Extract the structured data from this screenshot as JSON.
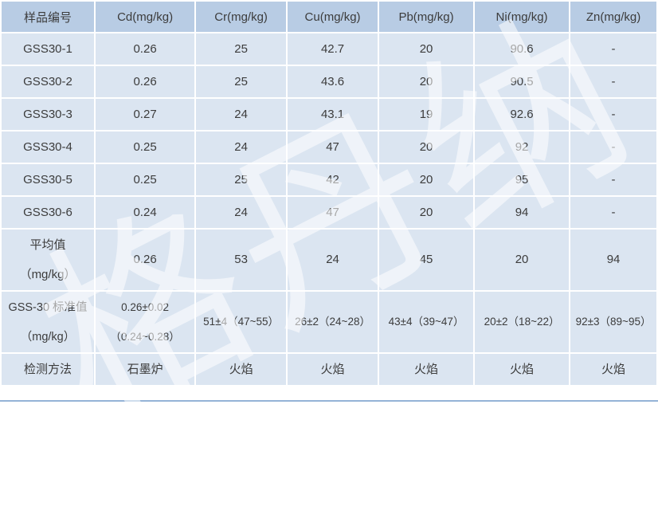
{
  "watermark": {
    "text": "格丹纳",
    "color": "#ffffff"
  },
  "colors": {
    "header_bg": "#b8cce4",
    "row_bg": "#dbe5f1",
    "gridline": "#ffffff",
    "bottom_rule": "#95b3d7",
    "text": "#3c3c3c"
  },
  "table": {
    "columns": [
      "样品编号",
      "Cd(mg/kg)",
      "Cr(mg/kg)",
      "Cu(mg/kg)",
      "Pb(mg/kg)",
      "Ni(mg/kg)",
      "Zn(mg/kg)"
    ],
    "rows": [
      {
        "cells": [
          [
            "GSS30-1"
          ],
          [
            "0.26"
          ],
          [
            "25"
          ],
          [
            "42.7"
          ],
          [
            "20"
          ],
          [
            "90.6"
          ],
          [
            "-"
          ]
        ]
      },
      {
        "cells": [
          [
            "GSS30-2"
          ],
          [
            "0.26"
          ],
          [
            "25"
          ],
          [
            "43.6"
          ],
          [
            "20"
          ],
          [
            "90.5"
          ],
          [
            "-"
          ]
        ]
      },
      {
        "cells": [
          [
            "GSS30-3"
          ],
          [
            "0.27"
          ],
          [
            "24"
          ],
          [
            "43.1"
          ],
          [
            "19"
          ],
          [
            "92.6"
          ],
          [
            "-"
          ]
        ]
      },
      {
        "cells": [
          [
            "GSS30-4"
          ],
          [
            "0.25"
          ],
          [
            "24"
          ],
          [
            "47"
          ],
          [
            "20"
          ],
          [
            "92"
          ],
          [
            "-"
          ]
        ]
      },
      {
        "cells": [
          [
            "GSS30-5"
          ],
          [
            "0.25"
          ],
          [
            "25"
          ],
          [
            "42"
          ],
          [
            "20"
          ],
          [
            "95"
          ],
          [
            "-"
          ]
        ]
      },
      {
        "cells": [
          [
            "GSS30-6"
          ],
          [
            "0.24"
          ],
          [
            "24"
          ],
          [
            "47"
          ],
          [
            "20"
          ],
          [
            "94"
          ],
          [
            "-"
          ]
        ]
      },
      {
        "cells": [
          [
            "平均值",
            "（mg/kg）"
          ],
          [
            "0.26"
          ],
          [
            "53"
          ],
          [
            "24"
          ],
          [
            "45"
          ],
          [
            "20"
          ],
          [
            "94"
          ]
        ]
      },
      {
        "cells": [
          [
            "GSS-30 标准值",
            "（mg/kg）"
          ],
          [
            "0.26±0.02",
            "（0.24~0.28）"
          ],
          [
            "51±4（47~55）"
          ],
          [
            "26±2（24~28）"
          ],
          [
            "43±4（39~47）"
          ],
          [
            "20±2（18~22）"
          ],
          [
            "92±3（89~95）"
          ]
        ]
      },
      {
        "cells": [
          [
            "检测方法"
          ],
          [
            "石墨炉"
          ],
          [
            "火焰"
          ],
          [
            "火焰"
          ],
          [
            "火焰"
          ],
          [
            "火焰"
          ],
          [
            "火焰"
          ]
        ]
      }
    ]
  }
}
